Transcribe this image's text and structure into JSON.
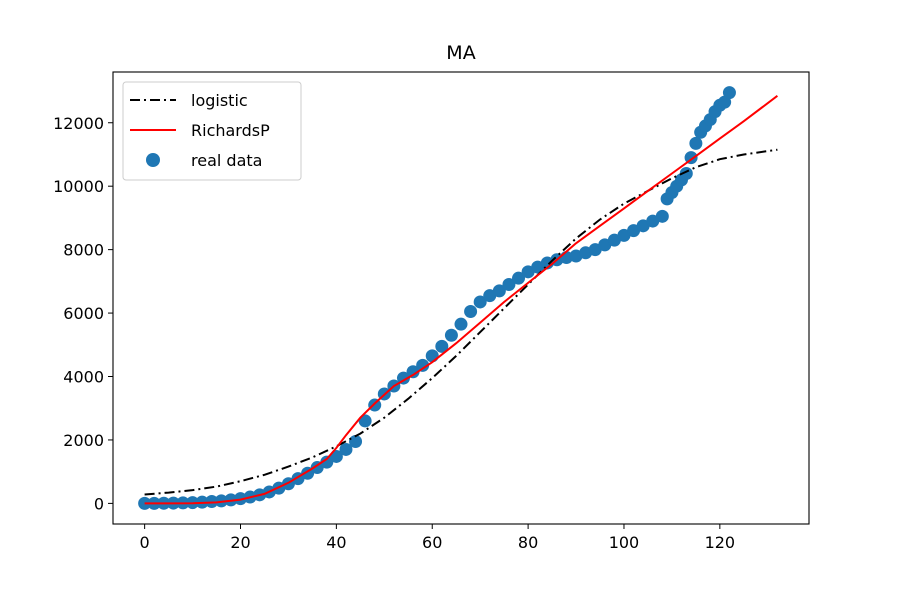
{
  "chart_data": {
    "type": "scatter",
    "title": "MA",
    "xlabel": "",
    "ylabel": "",
    "xlim": [
      -6.6,
      138.6
    ],
    "ylim": [
      -650,
      13600
    ],
    "xticks": [
      0,
      20,
      40,
      60,
      80,
      100,
      120
    ],
    "yticks": [
      0,
      2000,
      4000,
      6000,
      8000,
      10000,
      12000
    ],
    "grid": false,
    "legend_position": "top-left",
    "legend": [
      "logistic",
      "RichardsP",
      "real data"
    ],
    "colors": {
      "logistic": "#000000",
      "richards": "#ff0000",
      "real_data": "#1f77b4"
    },
    "series": [
      {
        "name": "logistic",
        "style": "dashdot",
        "x": [
          0,
          5,
          10,
          15,
          20,
          25,
          30,
          35,
          40,
          45,
          50,
          55,
          60,
          65,
          70,
          75,
          80,
          85,
          90,
          95,
          100,
          105,
          110,
          115,
          120,
          125,
          132
        ],
        "y": [
          280,
          340,
          420,
          530,
          700,
          900,
          1160,
          1450,
          1800,
          2200,
          2700,
          3300,
          3950,
          4650,
          5400,
          6150,
          6900,
          7650,
          8350,
          8950,
          9450,
          9850,
          10250,
          10600,
          10850,
          11000,
          11150
        ]
      },
      {
        "name": "RichardsP",
        "style": "solid",
        "x": [
          0,
          5,
          10,
          15,
          20,
          25,
          30,
          35,
          38,
          40,
          42,
          45,
          48,
          52,
          56,
          60,
          65,
          70,
          75,
          80,
          85,
          90,
          95,
          100,
          105,
          110,
          115,
          120,
          125,
          132
        ],
        "y": [
          0,
          0,
          5,
          30,
          120,
          300,
          650,
          1100,
          1400,
          1750,
          2150,
          2700,
          3150,
          3700,
          4050,
          4450,
          5050,
          5700,
          6350,
          6950,
          7550,
          8200,
          8750,
          9300,
          9850,
          10400,
          10950,
          11500,
          12050,
          12850
        ]
      },
      {
        "name": "real data",
        "style": "scatter",
        "x": [
          0,
          2,
          4,
          6,
          8,
          10,
          12,
          14,
          16,
          18,
          20,
          22,
          24,
          26,
          28,
          30,
          32,
          34,
          36,
          38,
          40,
          42,
          44,
          46,
          48,
          50,
          52,
          54,
          56,
          58,
          60,
          62,
          64,
          66,
          68,
          70,
          72,
          74,
          76,
          78,
          80,
          82,
          84,
          86,
          88,
          90,
          92,
          94,
          96,
          98,
          100,
          102,
          104,
          106,
          108,
          109,
          110,
          111,
          112,
          113,
          114,
          115,
          116,
          117,
          118,
          119,
          120,
          121,
          122
        ],
        "y": [
          0,
          0,
          5,
          10,
          15,
          25,
          40,
          60,
          80,
          110,
          150,
          200,
          270,
          360,
          480,
          620,
          780,
          950,
          1130,
          1300,
          1480,
          1700,
          1950,
          2600,
          3100,
          3450,
          3700,
          3950,
          4150,
          4350,
          4650,
          4950,
          5300,
          5650,
          6050,
          6350,
          6550,
          6700,
          6900,
          7100,
          7300,
          7450,
          7580,
          7680,
          7750,
          7800,
          7900,
          8000,
          8150,
          8300,
          8450,
          8600,
          8750,
          8900,
          9050,
          9600,
          9800,
          10000,
          10200,
          10400,
          10900,
          11350,
          11700,
          11900,
          12100,
          12350,
          12550,
          12650,
          12950
        ]
      }
    ]
  }
}
